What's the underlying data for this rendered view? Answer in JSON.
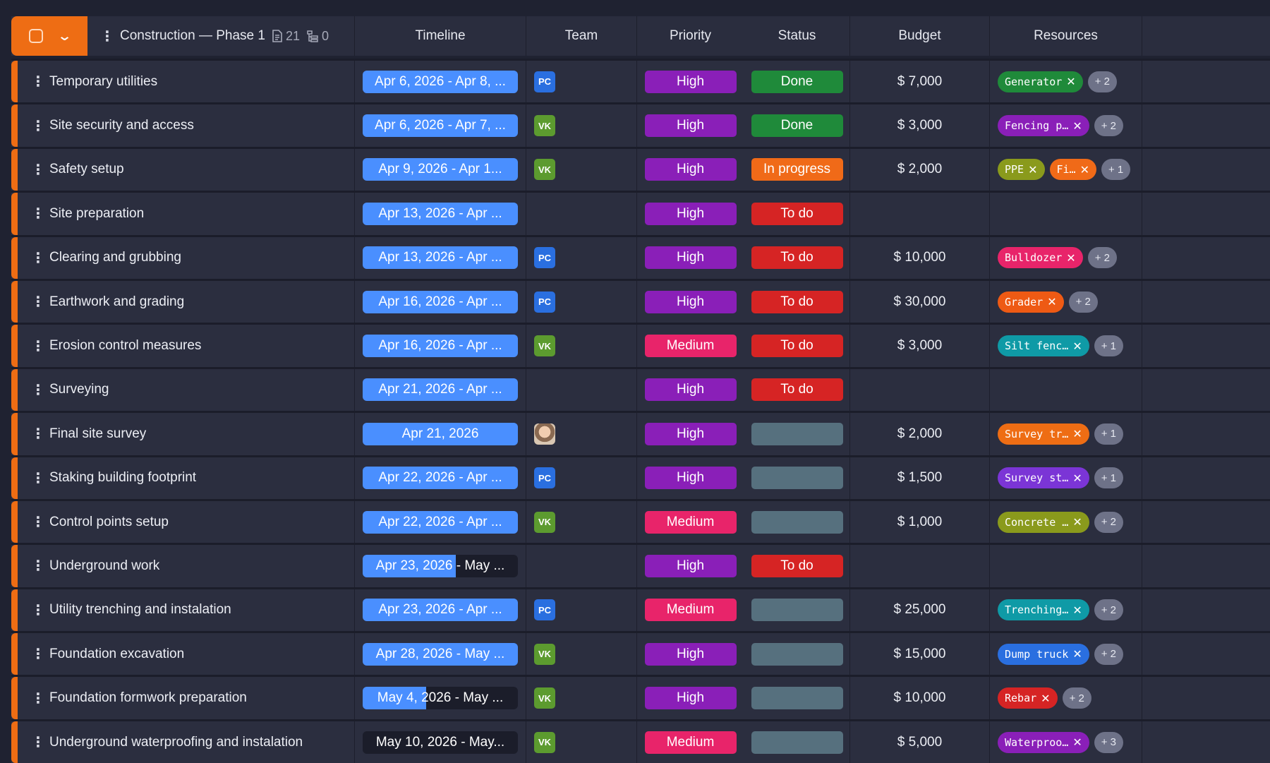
{
  "header": {
    "project_title": "Construction — Phase 1",
    "doc_count": "21",
    "subtask_count": "0",
    "columns": {
      "timeline": "Timeline",
      "team": "Team",
      "priority": "Priority",
      "status": "Status",
      "budget": "Budget",
      "resources": "Resources"
    }
  },
  "colors": {
    "accent": "#ee6d14",
    "timeline": "#4a8fff",
    "priority_high": "#8a1fb8",
    "priority_medium": "#e8246a",
    "status_done": "#1f8a3a",
    "status_in_progress": "#f06a18",
    "status_todo": "#d62424",
    "status_empty": "#56707e"
  },
  "rows": [
    {
      "name": "Temporary utilities",
      "timeline": "Apr 6, 2026 - Apr 8, ...",
      "tl_style": "full",
      "team": "PC",
      "team_type": "pc",
      "priority": "High",
      "status": "Done",
      "budget": "$ 7,000",
      "resources": [
        {
          "label": "Generator",
          "color": "#1f8a3a",
          "x": "✕"
        }
      ],
      "more": "+ 2"
    },
    {
      "name": "Site security and access",
      "timeline": "Apr 6, 2026 - Apr 7, ...",
      "tl_style": "full",
      "team": "VK",
      "team_type": "vk",
      "priority": "High",
      "status": "Done",
      "budget": "$ 3,000",
      "resources": [
        {
          "label": "Fencing p…",
          "color": "#8a1fb8",
          "x": "✕"
        }
      ],
      "more": "+ 2"
    },
    {
      "name": "Safety setup",
      "timeline": "Apr 9, 2026 - Apr 1...",
      "tl_style": "full",
      "team": "VK",
      "team_type": "vk",
      "priority": "High",
      "status": "In progress",
      "budget": "$ 2,000",
      "resources": [
        {
          "label": "PPE",
          "color": "#8a9a1c",
          "x": "✕"
        },
        {
          "label": "Fi…",
          "color": "#f06a18",
          "x": "✕"
        }
      ],
      "more": "+ 1"
    },
    {
      "name": "Site preparation",
      "timeline": "Apr 13, 2026 - Apr ...",
      "tl_style": "full",
      "team": "",
      "team_type": "",
      "priority": "High",
      "status": "To do",
      "budget": "",
      "resources": [],
      "more": ""
    },
    {
      "name": "Clearing and grubbing",
      "timeline": "Apr 13, 2026 - Apr ...",
      "tl_style": "full",
      "team": "PC",
      "team_type": "pc",
      "priority": "High",
      "status": "To do",
      "budget": "$ 10,000",
      "resources": [
        {
          "label": "Bulldozer",
          "color": "#e8246a",
          "x": "✕"
        }
      ],
      "more": "+ 2"
    },
    {
      "name": "Earthwork and grading",
      "timeline": "Apr 16, 2026 - Apr ...",
      "tl_style": "full",
      "team": "PC",
      "team_type": "pc",
      "priority": "High",
      "status": "To do",
      "budget": "$ 30,000",
      "resources": [
        {
          "label": "Grader",
          "color": "#ee5a14",
          "x": "✕"
        }
      ],
      "more": "+ 2"
    },
    {
      "name": "Erosion control measures",
      "timeline": "Apr 16, 2026 - Apr ...",
      "tl_style": "full",
      "team": "VK",
      "team_type": "vk",
      "priority": "Medium",
      "status": "To do",
      "budget": "$ 3,000",
      "resources": [
        {
          "label": "Silt fenc…",
          "color": "#0f9aa6",
          "x": "✕"
        }
      ],
      "more": "+ 1"
    },
    {
      "name": "Surveying",
      "timeline": "Apr 21, 2026 - Apr ...",
      "tl_style": "full",
      "team": "",
      "team_type": "",
      "priority": "High",
      "status": "To do",
      "budget": "",
      "resources": [],
      "more": ""
    },
    {
      "name": "Final site survey",
      "timeline": "Apr 21, 2026",
      "tl_style": "full",
      "team": "",
      "team_type": "photo",
      "priority": "High",
      "status": "",
      "budget": "$ 2,000",
      "resources": [
        {
          "label": "Survey tr…",
          "color": "#ee6d14",
          "x": "✕"
        }
      ],
      "more": "+ 1"
    },
    {
      "name": "Staking building footprint",
      "timeline": "Apr 22, 2026 - Apr ...",
      "tl_style": "full",
      "team": "PC",
      "team_type": "pc",
      "priority": "High",
      "status": "",
      "budget": "$ 1,500",
      "resources": [
        {
          "label": "Survey st…",
          "color": "#7b35d6",
          "x": "✕"
        }
      ],
      "more": "+ 1"
    },
    {
      "name": "Control points setup",
      "timeline": "Apr 22, 2026 - Apr ...",
      "tl_style": "full",
      "team": "VK",
      "team_type": "vk",
      "priority": "Medium",
      "status": "",
      "budget": "$ 1,000",
      "resources": [
        {
          "label": "Concrete …",
          "color": "#8a9a1c",
          "x": "✕"
        }
      ],
      "more": "+ 2"
    },
    {
      "name": "Underground work",
      "timeline": "Apr 23, 2026 - May ...",
      "tl_style": "partial",
      "tl_fill": 0.6,
      "team": "",
      "team_type": "",
      "priority": "High",
      "status": "To do",
      "budget": "",
      "resources": [],
      "more": ""
    },
    {
      "name": "Utility trenching and instalation",
      "timeline": "Apr 23, 2026 - Apr ...",
      "tl_style": "full",
      "team": "PC",
      "team_type": "pc",
      "priority": "Medium",
      "status": "",
      "budget": "$ 25,000",
      "resources": [
        {
          "label": "Trenching…",
          "color": "#0f9aa6",
          "x": "✕"
        }
      ],
      "more": "+ 2"
    },
    {
      "name": "Foundation excavation",
      "timeline": "Apr 28, 2026 - May ...",
      "tl_style": "full",
      "team": "VK",
      "team_type": "vk",
      "priority": "High",
      "status": "",
      "budget": "$ 15,000",
      "resources": [
        {
          "label": "Dump truck",
          "color": "#2a6fe0",
          "x": "✕"
        }
      ],
      "more": "+ 2"
    },
    {
      "name": "Foundation formwork preparation",
      "timeline": "May 4, 2026 - May ...",
      "tl_style": "partial",
      "tl_fill": 0.41,
      "team": "VK",
      "team_type": "vk",
      "priority": "High",
      "status": "",
      "budget": "$ 10,000",
      "resources": [
        {
          "label": "Rebar",
          "color": "#d62424",
          "x": "✕"
        }
      ],
      "more": "+ 2"
    },
    {
      "name": "Underground waterproofing and instalation",
      "timeline": "May 10, 2026 - May...",
      "tl_style": "dark",
      "team": "VK",
      "team_type": "vk",
      "priority": "Medium",
      "status": "",
      "budget": "$ 5,000",
      "resources": [
        {
          "label": "Waterproo…",
          "color": "#8a1fb8",
          "x": "✕"
        }
      ],
      "more": "+ 3"
    }
  ]
}
